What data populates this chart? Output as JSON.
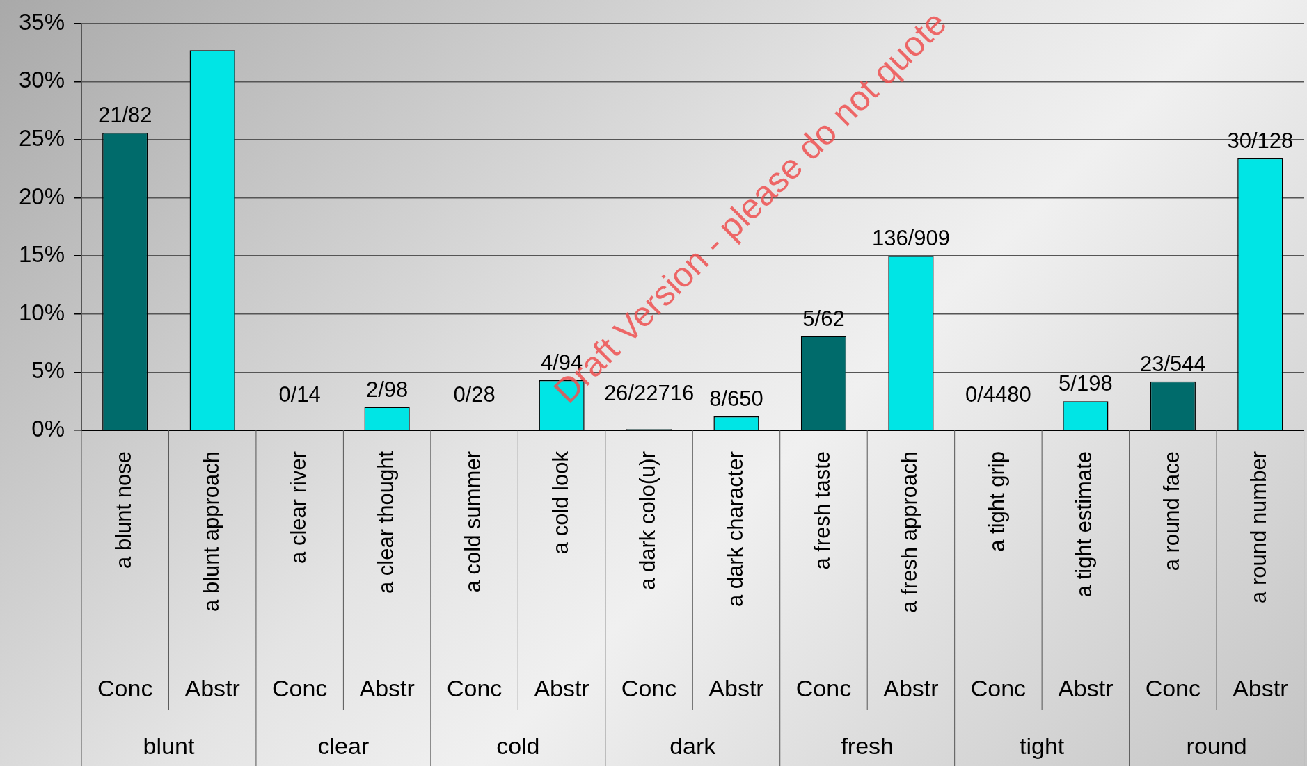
{
  "chart_data": {
    "type": "bar",
    "categories": [
      "a blunt nose",
      "a blunt approach",
      "a clear river",
      "a clear thought",
      "a cold summer",
      "a cold look",
      "a dark colo(u)r",
      "a dark character",
      "a fresh taste",
      "a fresh approach",
      "a tight grip",
      "a tight estimate",
      "a round face",
      "a round number"
    ],
    "values": [
      25.6,
      32.7,
      0,
      2.0,
      0,
      4.3,
      0.11,
      1.2,
      8.1,
      15.0,
      0,
      2.5,
      4.2,
      23.4
    ],
    "colors": [
      "#006b6b",
      "#00e5e5",
      "#006b6b",
      "#00e5e5",
      "#006b6b",
      "#00e5e5",
      "#006b6b",
      "#00e5e5",
      "#006b6b",
      "#00e5e5",
      "#006b6b",
      "#00e5e5",
      "#006b6b",
      "#00e5e5"
    ],
    "value_labels": [
      "21/82",
      null,
      "0/14",
      "2/98",
      "0/28",
      "4/94",
      "26/22716",
      "8/650",
      "5/62",
      "136/909",
      "0/4480",
      "5/198",
      "23/544",
      "30/128"
    ],
    "ylim": [
      0,
      35
    ],
    "yticks": [
      {
        "value": 0,
        "label": "0%"
      },
      {
        "value": 5,
        "label": "5%"
      },
      {
        "value": 10,
        "label": "10%"
      },
      {
        "value": 15,
        "label": "15%"
      },
      {
        "value": 20,
        "label": "20%"
      },
      {
        "value": 25,
        "label": "25%"
      },
      {
        "value": 30,
        "label": "30%"
      },
      {
        "value": 35,
        "label": "35%"
      }
    ],
    "grid": "y",
    "legend": false,
    "annotations": [
      "Conc",
      "Abstr",
      "Conc",
      "Abstr",
      "Conc",
      "Abstr",
      "Conc",
      "Abstr",
      "Conc",
      "Abstr",
      "Conc",
      "Abstr",
      "Conc",
      "Abstr",
      "blunt",
      "clear",
      "cold",
      "dark",
      "fresh",
      "tight",
      "round",
      "Draft Version - please do not quote"
    ]
  }
}
